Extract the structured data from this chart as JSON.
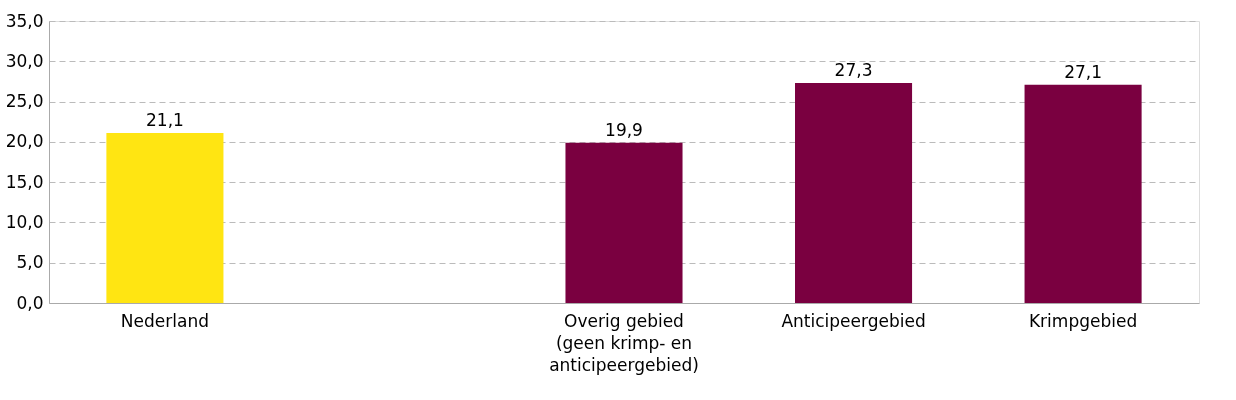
{
  "chart_data": {
    "type": "bar",
    "categories": [
      "Nederland",
      null,
      "Overig gebied\n(geen krimp- en\nanticipeergebied)",
      "Anticipeergebied",
      "Krimpgebied"
    ],
    "values": [
      21.1,
      null,
      19.9,
      27.3,
      27.1
    ],
    "colors": [
      "#ffe512",
      null,
      "#7a0040",
      "#7a0040",
      "#7a0040"
    ],
    "value_labels": [
      "21,1",
      null,
      "19,9",
      "27,3",
      "27,1"
    ],
    "ylim": [
      0,
      35
    ],
    "yticks": [
      {
        "value": 0,
        "label": "0,0"
      },
      {
        "value": 5,
        "label": "5,0"
      },
      {
        "value": 10,
        "label": "10,0"
      },
      {
        "value": 15,
        "label": "15,0"
      },
      {
        "value": 20,
        "label": "20,0"
      },
      {
        "value": 25,
        "label": "25,0"
      },
      {
        "value": 30,
        "label": "30,0"
      },
      {
        "value": 35,
        "label": "35,0"
      }
    ],
    "grid": "y"
  }
}
